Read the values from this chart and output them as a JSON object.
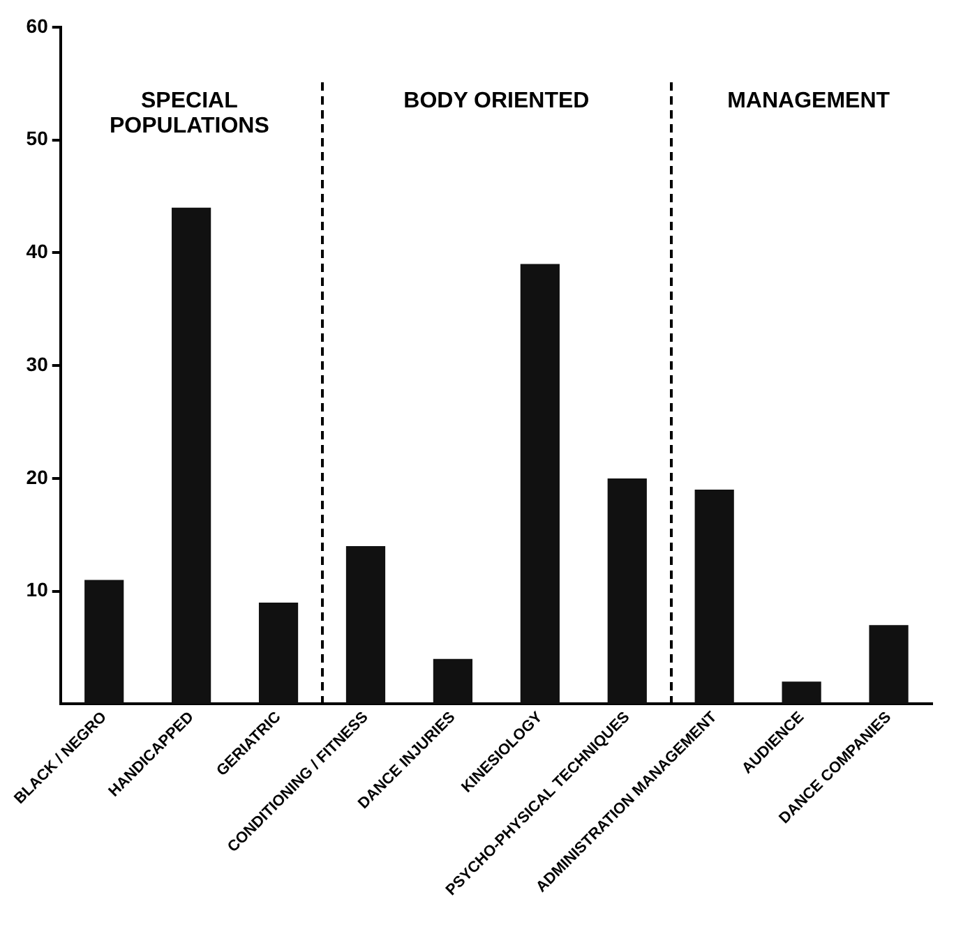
{
  "chart_data": {
    "type": "bar",
    "categories": [
      "BLACK / NEGRO",
      "HANDICAPPED",
      "GERIATRIC",
      "CONDITIONING / FITNESS",
      "DANCE INJURIES",
      "KINESIOLOGY",
      "PSYCHO-PHYSICAL TECHNIQUES",
      "ADMINISTRATION MANAGEMENT",
      "AUDIENCE",
      "DANCE COMPANIES"
    ],
    "values": [
      11,
      44,
      9,
      14,
      4,
      39,
      20,
      19,
      2,
      7
    ],
    "color": "#111111",
    "ylim": [
      0,
      60
    ],
    "yticks": [
      10,
      20,
      30,
      40,
      50,
      60
    ],
    "grid": false,
    "annotations": [
      "SPECIAL POPULATIONS",
      "BODY ORIENTED",
      "MANAGEMENT"
    ]
  }
}
